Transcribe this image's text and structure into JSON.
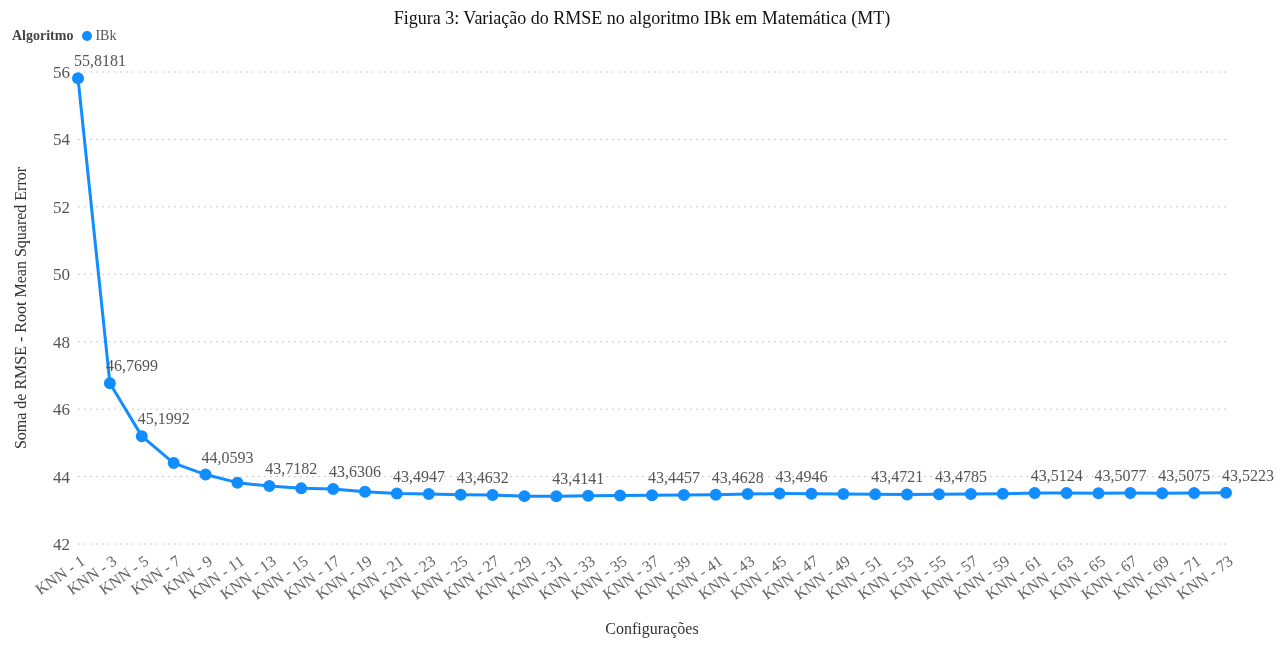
{
  "chart_data": {
    "type": "line",
    "title": "Figura 3: Variação do RMSE no algoritmo IBk em Matemática (MT)",
    "xlabel": "Configurações",
    "ylabel": "Soma de RMSE - Root Mean Squared Error",
    "legend_title": "Algoritmo",
    "legend": "top left",
    "grid": "y",
    "marker": "circle",
    "line_style": "solid",
    "categories": [
      "KNN - 1",
      "KNN - 3",
      "KNN - 5",
      "KNN - 7",
      "KNN - 9",
      "KNN - 11",
      "KNN - 13",
      "KNN - 15",
      "KNN - 17",
      "KNN - 19",
      "KNN - 21",
      "KNN - 23",
      "KNN - 25",
      "KNN - 27",
      "KNN - 29",
      "KNN - 31",
      "KNN - 33",
      "KNN - 35",
      "KNN - 37",
      "KNN - 39",
      "KNN - 41",
      "KNN - 43",
      "KNN - 45",
      "KNN - 47",
      "KNN - 49",
      "KNN - 51",
      "KNN - 53",
      "KNN - 55",
      "KNN - 57",
      "KNN - 59",
      "KNN - 61",
      "KNN - 63",
      "KNN - 65",
      "KNN - 67",
      "KNN - 69",
      "KNN - 71",
      "KNN - 73"
    ],
    "ylim": [
      42,
      56
    ],
    "yticks": [
      42,
      44,
      46,
      48,
      50,
      52,
      54,
      56
    ],
    "series": [
      {
        "name": "IBk",
        "color": "#118dff",
        "values": [
          55.8181,
          46.7699,
          45.1992,
          44.4,
          44.0593,
          43.82,
          43.7182,
          43.65,
          43.6306,
          43.55,
          43.4947,
          43.48,
          43.4632,
          43.45,
          43.42,
          43.4141,
          43.43,
          43.44,
          43.4457,
          43.45,
          43.4628,
          43.48,
          43.4946,
          43.49,
          43.48,
          43.4721,
          43.47,
          43.4785,
          43.48,
          43.49,
          43.5124,
          43.51,
          43.5077,
          43.51,
          43.5075,
          43.51,
          43.5223
        ],
        "value_labels": [
          "55,8181",
          "46,7699",
          "45,1992",
          null,
          "44,0593",
          null,
          "43,7182",
          null,
          "43,6306",
          null,
          "43,4947",
          null,
          "43,4632",
          null,
          null,
          "43,4141",
          null,
          null,
          "43,4457",
          null,
          "43,4628",
          null,
          "43,4946",
          null,
          null,
          "43,4721",
          null,
          "43,4785",
          null,
          null,
          "43,5124",
          null,
          "43,5077",
          null,
          "43,5075",
          null,
          "43,5223"
        ]
      }
    ]
  }
}
